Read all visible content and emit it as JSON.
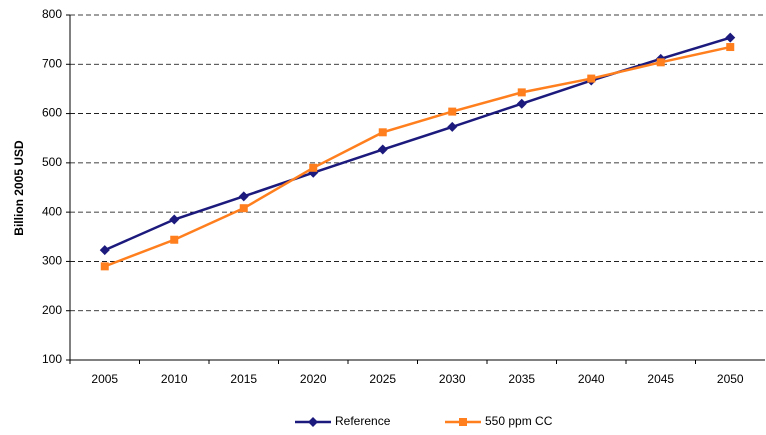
{
  "chart_data": {
    "type": "line",
    "y_label": "Billion 2005 USD",
    "categories": [
      "2005",
      "2010",
      "2015",
      "2020",
      "2025",
      "2030",
      "2035",
      "2040",
      "2045",
      "2050"
    ],
    "series": [
      {
        "name": "Reference",
        "color": "#1c1a7c",
        "marker": "diamond",
        "values": [
          323,
          385,
          432,
          480,
          527,
          573,
          620,
          667,
          711,
          754
        ]
      },
      {
        "name": "550 ppm CC",
        "color": "#ff7f1e",
        "marker": "square",
        "values": [
          290,
          344,
          408,
          490,
          562,
          604,
          643,
          671,
          704,
          735
        ]
      }
    ],
    "ylim": [
      100,
      800
    ],
    "yticks": [
      100,
      200,
      300,
      400,
      500,
      600,
      700,
      800
    ],
    "grid": true,
    "legend": "bottom"
  }
}
